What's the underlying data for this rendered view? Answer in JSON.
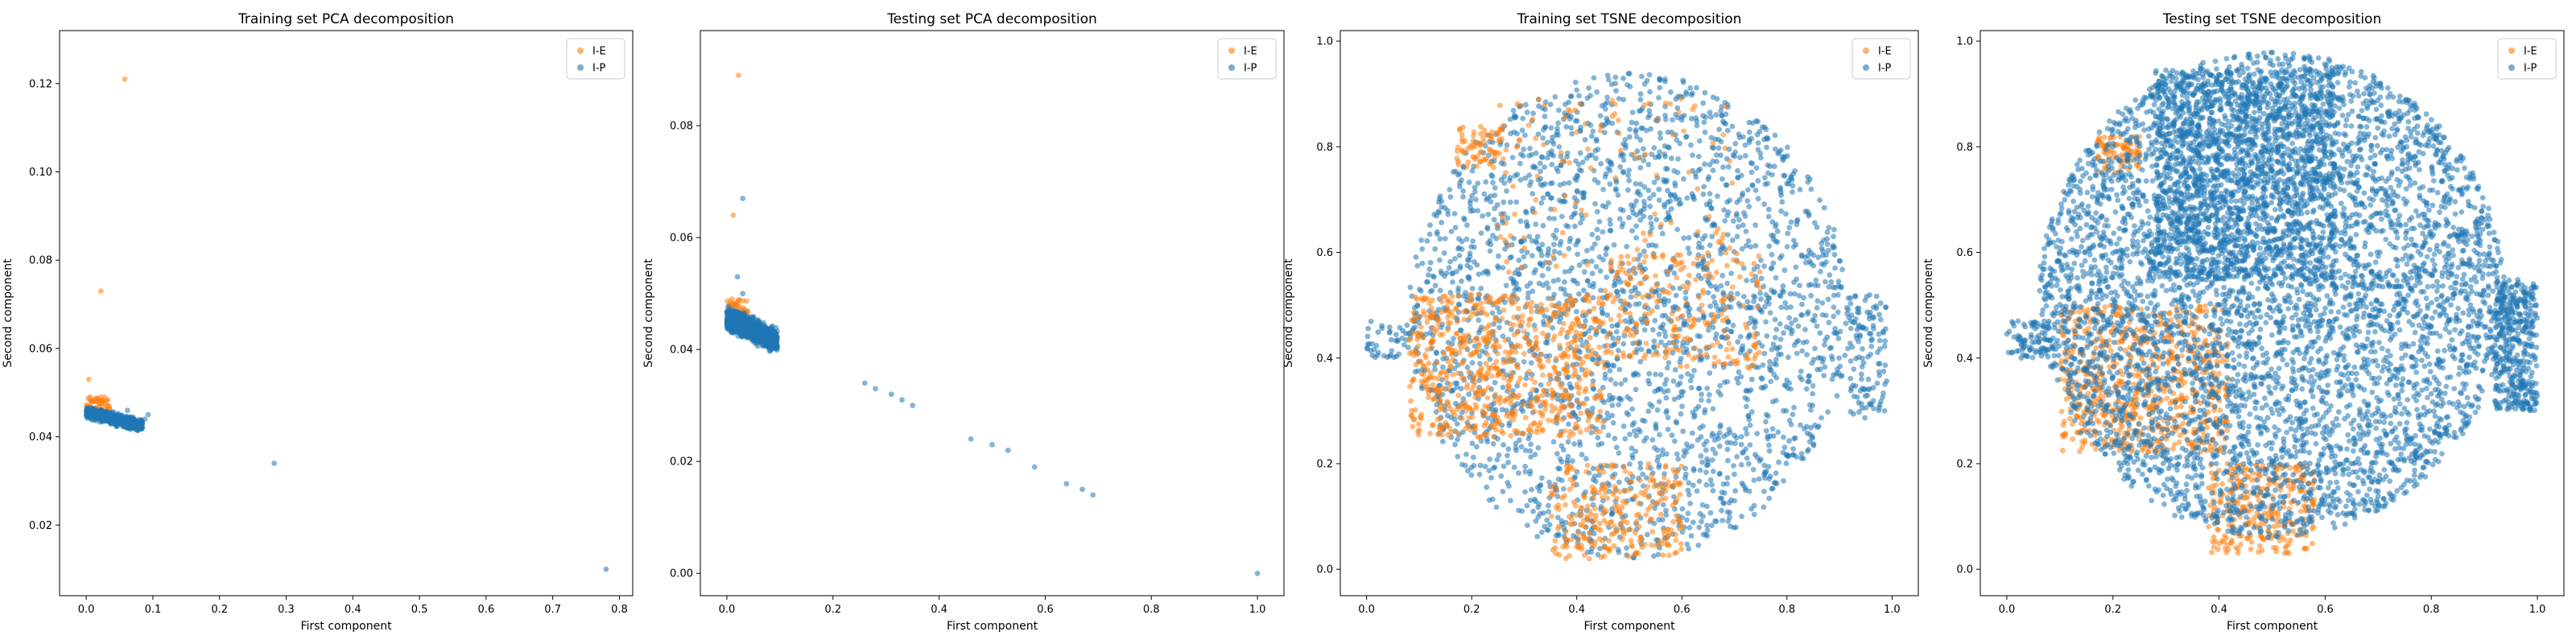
{
  "colors": {
    "ie": "#ff7f0e",
    "ip": "#1f77b4"
  },
  "chart_data": [
    {
      "type": "scatter",
      "title": "Training set PCA decomposition",
      "xlabel": "First component",
      "ylabel": "Second component",
      "xlim": [
        -0.04,
        0.82
      ],
      "ylim": [
        0.004,
        0.132
      ],
      "xticks": [
        "0.0",
        "0.1",
        "0.2",
        "0.3",
        "0.4",
        "0.5",
        "0.6",
        "0.7",
        "0.8"
      ],
      "yticks": [
        "0.02",
        "0.04",
        "0.06",
        "0.08",
        "0.10",
        "0.12"
      ],
      "legend": "top-right",
      "series": [
        {
          "name": "I-E",
          "color_key": "ie",
          "points": [
            [
              0.058,
              0.121
            ],
            [
              0.022,
              0.073
            ],
            [
              0.004,
              0.053
            ],
            [
              0.006,
              0.049
            ],
            [
              0.012,
              0.048
            ],
            [
              0.02,
              0.047
            ],
            [
              0.028,
              0.046
            ],
            [
              0.008,
              0.046
            ],
            [
              0.016,
              0.045
            ],
            [
              0.034,
              0.047
            ],
            [
              0.002,
              0.047
            ]
          ],
          "clusters": [
            {
              "x": [
                0.0,
                0.035
              ],
              "y": [
                0.044,
                0.049
              ],
              "n": 60
            }
          ]
        },
        {
          "name": "I-P",
          "color_key": "ip",
          "points": [
            [
              0.282,
              0.034
            ],
            [
              0.78,
              0.01
            ],
            [
              0.093,
              0.045
            ],
            [
              0.088,
              0.044
            ],
            [
              0.07,
              0.043
            ],
            [
              0.05,
              0.044
            ],
            [
              0.062,
              0.046
            ]
          ],
          "clusters": [
            {
              "band": [
                0.0,
                0.085
              ],
              "y0": 0.0455,
              "y1": 0.0425,
              "spread": 0.0018,
              "n": 700
            }
          ]
        }
      ]
    },
    {
      "type": "scatter",
      "title": "Testing set PCA decomposition",
      "xlabel": "First component",
      "ylabel": "Second component",
      "xlim": [
        -0.05,
        1.05
      ],
      "ylim": [
        -0.004,
        0.097
      ],
      "xticks": [
        "0.0",
        "0.2",
        "0.4",
        "0.6",
        "0.8",
        "1.0"
      ],
      "yticks": [
        "0.00",
        "0.02",
        "0.04",
        "0.06",
        "0.08"
      ],
      "legend": "top-right",
      "series": [
        {
          "name": "I-E",
          "color_key": "ie",
          "points": [
            [
              0.022,
              0.089
            ],
            [
              0.012,
              0.064
            ],
            [
              0.01,
              0.049
            ],
            [
              0.004,
              0.048
            ],
            [
              0.03,
              0.047
            ],
            [
              0.018,
              0.046
            ]
          ],
          "clusters": [
            {
              "x": [
                0.0,
                0.04
              ],
              "y": [
                0.045,
                0.049
              ],
              "n": 50
            }
          ]
        },
        {
          "name": "I-P",
          "color_key": "ip",
          "points": [
            [
              0.03,
              0.067
            ],
            [
              0.03,
              0.05
            ],
            [
              0.02,
              0.053
            ],
            [
              0.26,
              0.034
            ],
            [
              0.28,
              0.033
            ],
            [
              0.31,
              0.032
            ],
            [
              0.33,
              0.031
            ],
            [
              0.35,
              0.03
            ],
            [
              0.46,
              0.024
            ],
            [
              0.5,
              0.023
            ],
            [
              0.53,
              0.022
            ],
            [
              0.58,
              0.019
            ],
            [
              0.64,
              0.016
            ],
            [
              0.67,
              0.015
            ],
            [
              0.69,
              0.014
            ],
            [
              1.0,
              0.0
            ]
          ],
          "clusters": [
            {
              "band": [
                0.0,
                0.095
              ],
              "y0": 0.0455,
              "y1": 0.0415,
              "spread": 0.0028,
              "n": 1300
            }
          ]
        }
      ]
    },
    {
      "type": "scatter",
      "title": "Training set TSNE decomposition",
      "xlabel": "First component",
      "ylabel": "Second component",
      "xlim": [
        -0.05,
        1.05
      ],
      "ylim": [
        -0.05,
        1.02
      ],
      "xticks": [
        "0.0",
        "0.2",
        "0.4",
        "0.6",
        "0.8",
        "1.0"
      ],
      "yticks": [
        "0.0",
        "0.2",
        "0.4",
        "0.6",
        "0.8",
        "1.0"
      ],
      "legend": "top-right",
      "series": [
        {
          "name": "I-P",
          "color_key": "ip",
          "clusters": [
            {
              "disk": [
                0.5,
                0.48
              ],
              "r": [
                0.42,
                0.46
              ],
              "n": 2600
            },
            {
              "x": [
                0.92,
                0.99
              ],
              "y": [
                0.28,
                0.52
              ],
              "n": 120
            },
            {
              "x": [
                0.0,
                0.1
              ],
              "y": [
                0.4,
                0.47
              ],
              "n": 50
            }
          ]
        },
        {
          "name": "I-E",
          "color_key": "ie",
          "clusters": [
            {
              "x": [
                0.08,
                0.45
              ],
              "y": [
                0.25,
                0.52
              ],
              "n": 700
            },
            {
              "x": [
                0.17,
                0.26
              ],
              "y": [
                0.76,
                0.84
              ],
              "n": 70
            },
            {
              "x": [
                0.35,
                0.6
              ],
              "y": [
                0.02,
                0.2
              ],
              "n": 260
            },
            {
              "x": [
                0.45,
                0.75
              ],
              "y": [
                0.38,
                0.6
              ],
              "n": 220
            },
            {
              "x": [
                0.25,
                0.7
              ],
              "y": [
                0.55,
                0.9
              ],
              "n": 120
            }
          ]
        }
      ]
    },
    {
      "type": "scatter",
      "title": "Testing set TSNE decomposition",
      "xlabel": "First component",
      "ylabel": "Second component",
      "xlim": [
        -0.05,
        1.05
      ],
      "ylim": [
        -0.05,
        1.02
      ],
      "xticks": [
        "0.0",
        "0.2",
        "0.4",
        "0.6",
        "0.8",
        "1.0"
      ],
      "yticks": [
        "0.0",
        "0.2",
        "0.4",
        "0.6",
        "0.8",
        "1.0"
      ],
      "legend": "top-right",
      "series": [
        {
          "name": "I-E",
          "color_key": "ie",
          "clusters": [
            {
              "x": [
                0.1,
                0.42
              ],
              "y": [
                0.22,
                0.5
              ],
              "n": 700
            },
            {
              "x": [
                0.17,
                0.25
              ],
              "y": [
                0.75,
                0.82
              ],
              "n": 80
            },
            {
              "x": [
                0.38,
                0.58
              ],
              "y": [
                0.03,
                0.2
              ],
              "n": 300
            }
          ]
        },
        {
          "name": "I-P",
          "color_key": "ip",
          "clusters": [
            {
              "disk": [
                0.5,
                0.52
              ],
              "r": [
                0.44,
                0.46
              ],
              "n": 5200
            },
            {
              "x": [
                0.28,
                0.62
              ],
              "y": [
                0.55,
                0.95
              ],
              "n": 1400
            },
            {
              "x": [
                0.92,
                1.0
              ],
              "y": [
                0.3,
                0.55
              ],
              "n": 400
            },
            {
              "x": [
                0.0,
                0.1
              ],
              "y": [
                0.4,
                0.47
              ],
              "n": 90
            }
          ]
        }
      ]
    }
  ]
}
